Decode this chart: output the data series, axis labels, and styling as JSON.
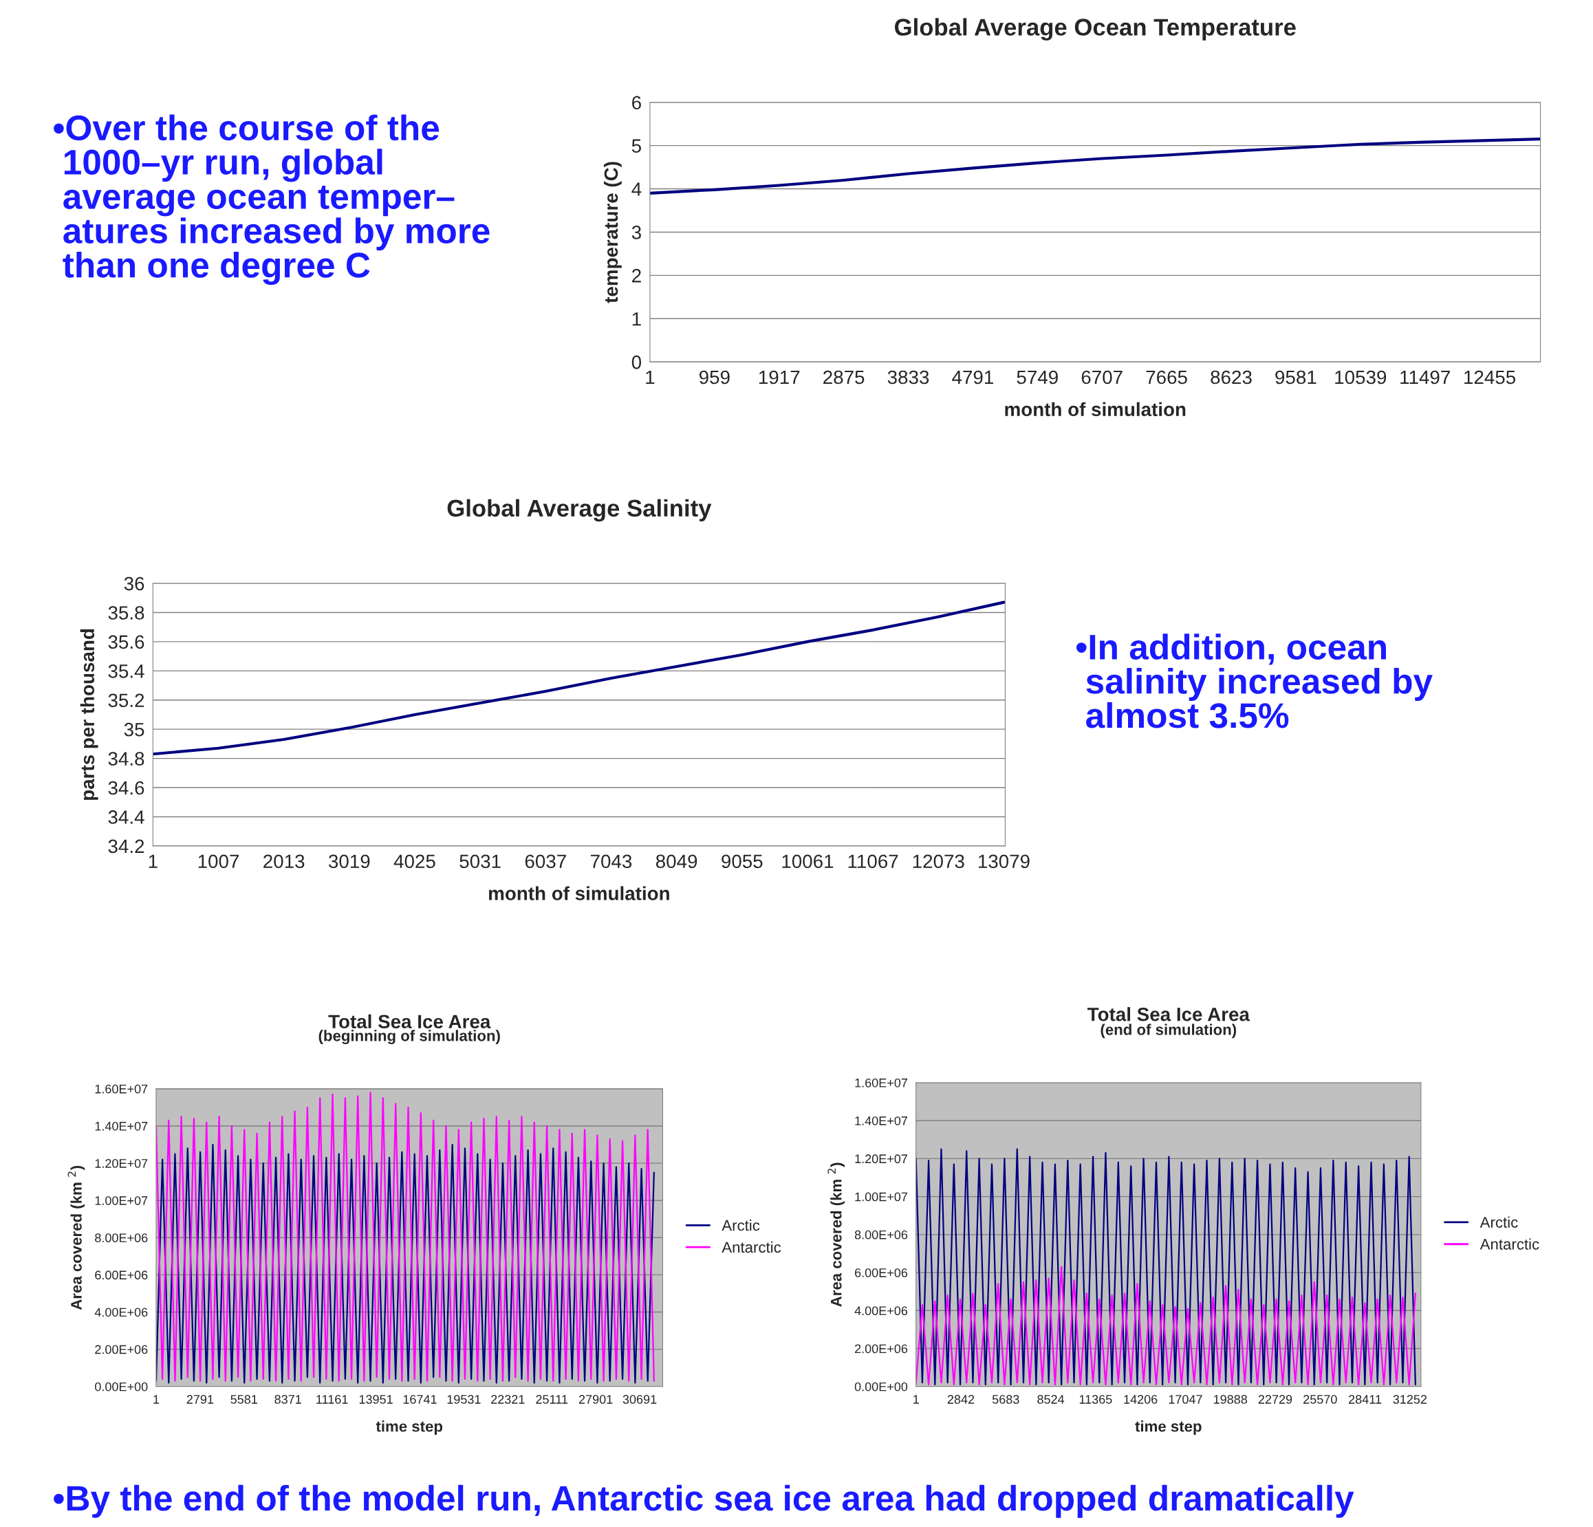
{
  "chart_data": [
    {
      "type": "line",
      "title": "Global Average Ocean Temperature",
      "xlabel": "month of simulation",
      "ylabel": "temperature (C)",
      "x": [
        1,
        959,
        1917,
        2875,
        3833,
        4791,
        5749,
        6707,
        7665,
        8623,
        9581,
        10539,
        11497,
        12455,
        13210
      ],
      "series": [
        {
          "color": "#000080",
          "values": [
            3.9,
            3.98,
            4.08,
            4.2,
            4.35,
            4.48,
            4.6,
            4.7,
            4.78,
            4.87,
            4.95,
            5.03,
            5.08,
            5.12,
            5.15
          ]
        }
      ],
      "xlim": [
        1,
        13210
      ],
      "xticks": [
        1,
        959,
        1917,
        2875,
        3833,
        4791,
        5749,
        6707,
        7665,
        8623,
        9581,
        10539,
        11497,
        12455
      ],
      "ylim": [
        0,
        6
      ],
      "yticks": [
        0,
        1,
        2,
        3,
        4,
        5,
        6
      ],
      "grid": "y",
      "legend": false,
      "annotations": [
        "•Over the course of the\n 1000–yr run, global\n average ocean temper–\n atures increased by more\n than one degree C"
      ]
    },
    {
      "type": "line",
      "title": "Global Average Salinity",
      "xlabel": "month of simulation",
      "ylabel": "parts per thousand",
      "x": [
        1,
        1007,
        2013,
        3019,
        4025,
        5031,
        6037,
        7043,
        8049,
        9055,
        10061,
        11067,
        12073,
        13079
      ],
      "series": [
        {
          "color": "#000080",
          "values": [
            34.83,
            34.87,
            34.93,
            35.01,
            35.1,
            35.18,
            35.26,
            35.35,
            35.43,
            35.51,
            35.6,
            35.68,
            35.77,
            35.87
          ]
        }
      ],
      "xlim": [
        1,
        13100
      ],
      "xticks": [
        1,
        1007,
        2013,
        3019,
        4025,
        5031,
        6037,
        7043,
        8049,
        9055,
        10061,
        11067,
        12073,
        13079
      ],
      "ylim": [
        34.2,
        36
      ],
      "yticks": [
        {
          "value": 34.2,
          "label": "34.2"
        },
        {
          "value": 34.4,
          "label": "34.4"
        },
        {
          "value": 34.6,
          "label": "34.6"
        },
        {
          "value": 34.8,
          "label": "34.8"
        },
        35,
        {
          "value": 35.2,
          "label": "35.2"
        },
        {
          "value": 35.4,
          "label": "35.4"
        },
        {
          "value": 35.6,
          "label": "35.6"
        },
        {
          "value": 35.8,
          "label": "35.8"
        },
        36
      ],
      "grid": "y",
      "legend": false,
      "annotations": [
        "•In addition, ocean\n salinity increased by\n almost 3.5%"
      ]
    },
    {
      "type": "line",
      "title": "Total Sea Ice Area",
      "subtitle": "(beginning of simulation)",
      "xlabel": "time step",
      "ylabel": "Area covered (km $^{2}$)",
      "x": [
        1,
        401,
        801,
        1201,
        1601,
        2001,
        2401,
        2801,
        3201,
        3601,
        4001,
        4401,
        4801,
        5201,
        5601,
        6001,
        6401,
        6801,
        7201,
        7601,
        8001,
        8401,
        8801,
        9201,
        9601,
        10001,
        10401,
        10801,
        11201,
        11601,
        12001,
        12401,
        12801,
        13201,
        13601,
        14001,
        14401,
        14801,
        15201,
        15601,
        16001,
        16401,
        16801,
        17201,
        17601,
        18001,
        18401,
        18801,
        19201,
        19601,
        20001,
        20401,
        20801,
        21201,
        21601,
        22001,
        22401,
        22801,
        23201,
        23601,
        24001,
        24401,
        24801,
        25201,
        25601,
        26001,
        26401,
        26801,
        27201,
        27601,
        28001,
        28401,
        28801,
        29201,
        29601,
        30001,
        30401,
        30801,
        31201,
        31601
      ],
      "series": [
        {
          "name": "Arctic",
          "color": "#000080",
          "values": [
            300000.0,
            12200000.0,
            200000.0,
            12500000.0,
            400000.0,
            12800000.0,
            300000.0,
            12600000.0,
            200000.0,
            13000000.0,
            500000.0,
            12700000.0,
            300000.0,
            12400000.0,
            200000.0,
            12200000.0,
            400000.0,
            12000000.0,
            300000.0,
            12300000.0,
            200000.0,
            12500000.0,
            300000.0,
            12200000.0,
            500000.0,
            12400000.0,
            200000.0,
            12300000.0,
            300000.0,
            12500000.0,
            400000.0,
            12200000.0,
            200000.0,
            12400000.0,
            300000.0,
            12000000.0,
            200000.0,
            12300000.0,
            400000.0,
            12600000.0,
            300000.0,
            12500000.0,
            200000.0,
            12400000.0,
            500000.0,
            12700000.0,
            300000.0,
            13000000.0,
            200000.0,
            12800000.0,
            400000.0,
            12500000.0,
            300000.0,
            12200000.0,
            200000.0,
            12000000.0,
            300000.0,
            12400000.0,
            400000.0,
            12700000.0,
            200000.0,
            12500000.0,
            300000.0,
            12800000.0,
            200000.0,
            12600000.0,
            400000.0,
            12300000.0,
            300000.0,
            12100000.0,
            200000.0,
            12000000.0,
            300000.0,
            11800000.0,
            400000.0,
            12000000.0,
            200000.0,
            11700000.0,
            300000.0,
            11500000.0
          ]
        },
        {
          "name": "Antarctic",
          "color": "#ff00ff",
          "values": [
            14000000.0,
            400000.0,
            14300000.0,
            300000.0,
            14500000.0,
            500000.0,
            14400000.0,
            300000.0,
            14200000.0,
            400000.0,
            14500000.0,
            300000.0,
            14000000.0,
            500000.0,
            13800000.0,
            300000.0,
            13600000.0,
            400000.0,
            14200000.0,
            300000.0,
            14500000.0,
            400000.0,
            14800000.0,
            300000.0,
            15000000.0,
            500000.0,
            15500000.0,
            400000.0,
            15700000.0,
            300000.0,
            15500000.0,
            400000.0,
            15600000.0,
            300000.0,
            15800000.0,
            500000.0,
            15500000.0,
            400000.0,
            15200000.0,
            300000.0,
            15000000.0,
            400000.0,
            14700000.0,
            300000.0,
            14300000.0,
            500000.0,
            14000000.0,
            300000.0,
            13800000.0,
            400000.0,
            14200000.0,
            300000.0,
            14400000.0,
            400000.0,
            14500000.0,
            300000.0,
            14300000.0,
            500000.0,
            14500000.0,
            300000.0,
            14200000.0,
            400000.0,
            14000000.0,
            300000.0,
            13800000.0,
            400000.0,
            13600000.0,
            300000.0,
            13800000.0,
            400000.0,
            13500000.0,
            300000.0,
            13300000.0,
            400000.0,
            13200000.0,
            300000.0,
            13500000.0,
            400000.0,
            13800000.0,
            300000.0
          ]
        }
      ],
      "xlim": [
        1,
        32150
      ],
      "xticks": [
        1,
        2791,
        5581,
        8371,
        11161,
        13951,
        16741,
        19531,
        22321,
        25111,
        27901,
        30691
      ],
      "ylim": [
        0,
        16000000.0
      ],
      "yticks": [
        {
          "value": 0,
          "label": "0.00E+00"
        },
        {
          "value": 2000000.0,
          "label": "2.00E+06"
        },
        {
          "value": 4000000.0,
          "label": "4.00E+06"
        },
        {
          "value": 6000000.0,
          "label": "6.00E+06"
        },
        {
          "value": 8000000.0,
          "label": "8.00E+06"
        },
        {
          "value": 10000000.0,
          "label": "1.00E+07"
        },
        {
          "value": 12000000.0,
          "label": "1.20E+07"
        },
        {
          "value": 14000000.0,
          "label": "1.40E+07"
        },
        {
          "value": 16000000.0,
          "label": "1.60E+07"
        }
      ],
      "grid": "y",
      "legend": "right"
    },
    {
      "type": "line",
      "title": "Total Sea Ice Area",
      "subtitle": "(end of simulation)",
      "xlabel": "time step",
      "ylabel": "Area covered (km $^{2}$)",
      "x": [
        1,
        401,
        801,
        1201,
        1601,
        2001,
        2401,
        2801,
        3201,
        3601,
        4001,
        4401,
        4801,
        5201,
        5601,
        6001,
        6401,
        6801,
        7201,
        7601,
        8001,
        8401,
        8801,
        9201,
        9601,
        10001,
        10401,
        10801,
        11201,
        11601,
        12001,
        12401,
        12801,
        13201,
        13601,
        14001,
        14401,
        14801,
        15201,
        15601,
        16001,
        16401,
        16801,
        17201,
        17601,
        18001,
        18401,
        18801,
        19201,
        19601,
        20001,
        20401,
        20801,
        21201,
        21601,
        22001,
        22401,
        22801,
        23201,
        23601,
        24001,
        24401,
        24801,
        25201,
        25601,
        26001,
        26401,
        26801,
        27201,
        27601,
        28001,
        28401,
        28801,
        29201,
        29601,
        30001,
        30401,
        30801,
        31201,
        31601
      ],
      "series": [
        {
          "name": "Arctic",
          "color": "#000080",
          "values": [
            12000000.0,
            200000.0,
            11900000.0,
            100000.0,
            12500000.0,
            200000.0,
            11700000.0,
            100000.0,
            12400000.0,
            200000.0,
            12000000.0,
            100000.0,
            11700000.0,
            200000.0,
            12000000.0,
            100000.0,
            12500000.0,
            200000.0,
            12100000.0,
            100000.0,
            11800000.0,
            200000.0,
            11700000.0,
            100000.0,
            11900000.0,
            200000.0,
            11700000.0,
            100000.0,
            12100000.0,
            200000.0,
            12300000.0,
            100000.0,
            11800000.0,
            200000.0,
            11600000.0,
            100000.0,
            12000000.0,
            200000.0,
            11800000.0,
            100000.0,
            12100000.0,
            200000.0,
            11800000.0,
            100000.0,
            11700000.0,
            200000.0,
            11900000.0,
            100000.0,
            12000000.0,
            200000.0,
            11800000.0,
            100000.0,
            12000000.0,
            200000.0,
            11900000.0,
            100000.0,
            11700000.0,
            200000.0,
            11800000.0,
            100000.0,
            11500000.0,
            200000.0,
            11300000.0,
            100000.0,
            11500000.0,
            200000.0,
            11900000.0,
            100000.0,
            11800000.0,
            200000.0,
            11600000.0,
            100000.0,
            11800000.0,
            200000.0,
            11700000.0,
            100000.0,
            11900000.0,
            200000.0,
            12100000.0,
            100000.0
          ]
        },
        {
          "name": "Antarctic",
          "color": "#ff00ff",
          "values": [
            200000.0,
            4300000.0,
            100000.0,
            4500000.0,
            200000.0,
            4800000.0,
            100000.0,
            4600000.0,
            200000.0,
            4900000.0,
            100000.0,
            4300000.0,
            200000.0,
            5400000.0,
            100000.0,
            4600000.0,
            200000.0,
            5500000.0,
            100000.0,
            5600000.0,
            200000.0,
            5700000.0,
            100000.0,
            6300000.0,
            200000.0,
            5600000.0,
            100000.0,
            4900000.0,
            200000.0,
            4600000.0,
            100000.0,
            4800000.0,
            200000.0,
            4900000.0,
            100000.0,
            5400000.0,
            200000.0,
            4500000.0,
            100000.0,
            4300000.0,
            200000.0,
            4200000.0,
            100000.0,
            4100000.0,
            200000.0,
            4400000.0,
            100000.0,
            4700000.0,
            200000.0,
            5300000.0,
            100000.0,
            5100000.0,
            200000.0,
            4600000.0,
            100000.0,
            4300000.0,
            200000.0,
            4600000.0,
            100000.0,
            4500000.0,
            200000.0,
            4800000.0,
            100000.0,
            5500000.0,
            200000.0,
            4800000.0,
            100000.0,
            4600000.0,
            200000.0,
            4700000.0,
            100000.0,
            4400000.0,
            200000.0,
            4600000.0,
            100000.0,
            4800000.0,
            200000.0,
            4700000.0,
            100000.0,
            4900000.0
          ]
        }
      ],
      "xlim": [
        1,
        31950
      ],
      "xticks": [
        1,
        2842,
        5683,
        8524,
        11365,
        14206,
        17047,
        19888,
        22729,
        25570,
        28411,
        31252
      ],
      "ylim": [
        0,
        16000000.0
      ],
      "yticks": [
        {
          "value": 0,
          "label": "0.00E+00"
        },
        {
          "value": 2000000.0,
          "label": "2.00E+06"
        },
        {
          "value": 4000000.0,
          "label": "4.00E+06"
        },
        {
          "value": 6000000.0,
          "label": "6.00E+06"
        },
        {
          "value": 8000000.0,
          "label": "8.00E+06"
        },
        {
          "value": 10000000.0,
          "label": "1.00E+07"
        },
        {
          "value": 12000000.0,
          "label": "1.20E+07"
        },
        {
          "value": 14000000.0,
          "label": "1.40E+07"
        },
        {
          "value": 16000000.0,
          "label": "1.60E+07"
        }
      ],
      "grid": "y",
      "legend": "right",
      "annotations": [
        "•By the end of the model run, Antarctic sea ice area had dropped dramatically"
      ]
    }
  ]
}
